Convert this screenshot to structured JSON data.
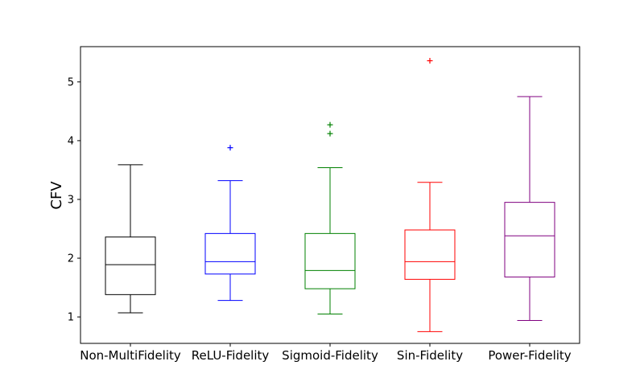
{
  "chart_data": {
    "type": "box",
    "xlabel": "",
    "ylabel": "CFV",
    "ylim": [
      0.55,
      5.6
    ],
    "yticks": [
      1,
      2,
      3,
      4,
      5
    ],
    "grid": false,
    "categories": [
      "Non-MultiFidelity",
      "ReLU-Fidelity",
      "Sigmoid-Fidelity",
      "Sin-Fidelity",
      "Power-Fidelity"
    ],
    "series": [
      {
        "category": "Non-MultiFidelity",
        "color": "#000000",
        "whisker_low": 1.07,
        "q1": 1.38,
        "median": 1.89,
        "q3": 2.36,
        "whisker_high": 3.59,
        "outliers": []
      },
      {
        "category": "ReLU-Fidelity",
        "color": "#0000ff",
        "whisker_low": 1.28,
        "q1": 1.73,
        "median": 1.94,
        "q3": 2.42,
        "whisker_high": 3.32,
        "outliers": [
          3.88
        ]
      },
      {
        "category": "Sigmoid-Fidelity",
        "color": "#008000",
        "whisker_low": 1.05,
        "q1": 1.48,
        "median": 1.79,
        "q3": 2.42,
        "whisker_high": 3.54,
        "outliers": [
          4.12,
          4.27
        ]
      },
      {
        "category": "Sin-Fidelity",
        "color": "#ff0000",
        "whisker_low": 0.75,
        "q1": 1.64,
        "median": 1.94,
        "q3": 2.48,
        "whisker_high": 3.29,
        "outliers": [
          5.36
        ]
      },
      {
        "category": "Power-Fidelity",
        "color": "#800080",
        "whisker_low": 0.94,
        "q1": 1.68,
        "median": 2.38,
        "q3": 2.95,
        "whisker_high": 4.75,
        "outliers": []
      }
    ]
  }
}
